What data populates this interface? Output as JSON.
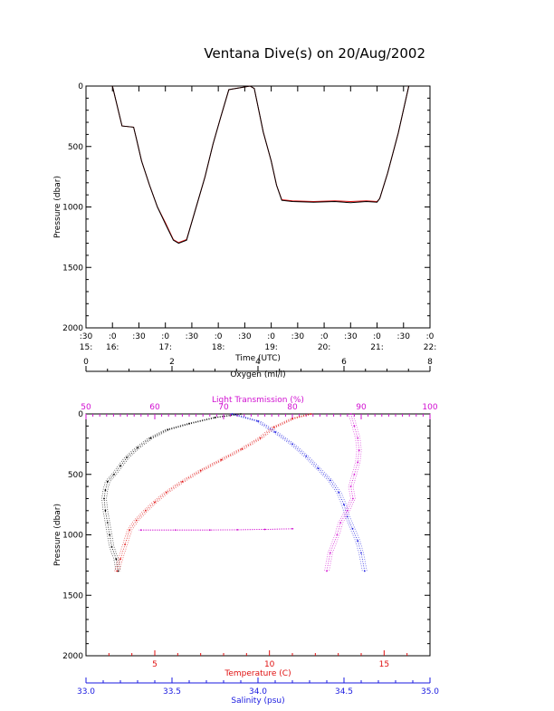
{
  "title": "Ventana Dive(s) on 20/Aug/2002",
  "colors": {
    "black": "#000000",
    "red": "#e01010",
    "blue": "#1a1ae0",
    "magenta": "#d10fd1"
  },
  "chart_data": [
    {
      "type": "line",
      "title": "Ventana Dive(s) on 20/Aug/2002",
      "xlabel": "Time (UTC)",
      "ylabel": "Pressure (dbar)",
      "xlim": [
        15.5,
        22.0
      ],
      "ylim": [
        2000,
        0
      ],
      "x_tick_labels": [
        {
          "x": 15.5,
          "top": ":30",
          "bottom": "15:"
        },
        {
          "x": 16.0,
          "top": ":0",
          "bottom": "16:"
        },
        {
          "x": 16.5,
          "top": ":30",
          "bottom": ""
        },
        {
          "x": 17.0,
          "top": ":0",
          "bottom": "17:"
        },
        {
          "x": 17.5,
          "top": ":30",
          "bottom": ""
        },
        {
          "x": 18.0,
          "top": ":0",
          "bottom": "18:"
        },
        {
          "x": 18.5,
          "top": ":30",
          "bottom": ""
        },
        {
          "x": 19.0,
          "top": ":0",
          "bottom": "19:"
        },
        {
          "x": 19.5,
          "top": ":30",
          "bottom": ""
        },
        {
          "x": 20.0,
          "top": ":0",
          "bottom": "20:"
        },
        {
          "x": 20.5,
          "top": ":30",
          "bottom": ""
        },
        {
          "x": 21.0,
          "top": ":0",
          "bottom": "21:"
        },
        {
          "x": 21.5,
          "top": ":30",
          "bottom": ""
        },
        {
          "x": 22.0,
          "top": ":0",
          "bottom": "22:"
        }
      ],
      "y_ticks": [
        0,
        500,
        1000,
        1500,
        2000
      ],
      "series": [
        {
          "color": "red",
          "x": [
            16.0,
            16.18,
            16.4,
            16.45,
            16.55,
            16.7,
            16.85,
            17.0,
            17.15,
            17.25,
            17.4,
            17.55,
            17.75,
            17.9,
            18.05,
            18.2,
            18.6,
            18.68,
            18.85,
            19.0,
            19.1,
            19.2,
            19.4,
            19.8,
            20.2,
            20.5,
            20.8,
            21.0,
            21.05,
            21.2,
            21.4,
            21.6
          ],
          "y": [
            0,
            330,
            340,
            430,
            620,
            820,
            1000,
            1130,
            1270,
            1295,
            1270,
            1050,
            750,
            480,
            250,
            30,
            0,
            20,
            380,
            620,
            820,
            940,
            950,
            955,
            950,
            955,
            950,
            955,
            930,
            720,
            390,
            0
          ]
        },
        {
          "color": "black",
          "x": [
            16.0,
            16.18,
            16.4,
            16.45,
            16.55,
            16.7,
            16.85,
            17.0,
            17.15,
            17.25,
            17.4,
            17.55,
            17.75,
            17.9,
            18.05,
            18.2,
            18.6,
            18.68,
            18.85,
            19.0,
            19.1,
            19.2,
            19.4,
            19.8,
            20.2,
            20.5,
            20.8,
            21.0,
            21.05,
            21.2,
            21.4,
            21.6
          ],
          "y": [
            0,
            330,
            340,
            430,
            620,
            820,
            1000,
            1140,
            1275,
            1300,
            1275,
            1050,
            750,
            480,
            250,
            30,
            0,
            20,
            380,
            620,
            820,
            945,
            955,
            960,
            955,
            965,
            955,
            960,
            930,
            720,
            390,
            0
          ]
        }
      ]
    },
    {
      "type": "scatter",
      "ylabel": "Pressure (dbar)",
      "ylim": [
        2000,
        0
      ],
      "y_ticks": [
        0,
        500,
        1000,
        1500,
        2000
      ],
      "axes": {
        "oxygen": {
          "label": "Oxygen (ml/l)",
          "range": [
            0,
            8
          ],
          "ticks": [
            0,
            2,
            4,
            6,
            8
          ],
          "color": "black",
          "position": "top"
        },
        "light": {
          "label": "Light Transmission (%)",
          "range": [
            50,
            100
          ],
          "ticks": [
            50,
            60,
            70,
            80,
            90,
            100
          ],
          "color": "magenta",
          "position": "top"
        },
        "temperature": {
          "label": "Temperature (C)",
          "range": [
            2,
            17
          ],
          "ticks": [
            5,
            10,
            15
          ],
          "color": "red",
          "position": "bottom"
        },
        "salinity": {
          "label": "Salinity (psu)",
          "range": [
            33.0,
            35.0
          ],
          "ticks": [
            "33.0",
            "33.5",
            "34.0",
            "34.5",
            "35.0"
          ],
          "color": "blue",
          "position": "bottom"
        }
      },
      "series": [
        {
          "color": "black",
          "axis": "oxygen",
          "x": [
            3.6,
            3.0,
            2.4,
            1.9,
            1.5,
            1.2,
            0.95,
            0.8,
            0.65,
            0.5,
            0.45,
            0.42,
            0.45,
            0.5,
            0.55,
            0.6,
            0.7,
            0.75
          ],
          "y": [
            0,
            30,
            80,
            130,
            200,
            280,
            360,
            430,
            500,
            560,
            630,
            700,
            800,
            900,
            1000,
            1100,
            1200,
            1300
          ]
        },
        {
          "color": "red",
          "axis": "temperature",
          "x": [
            11.8,
            11.0,
            10.2,
            9.6,
            8.8,
            7.9,
            7.0,
            6.2,
            5.5,
            5.0,
            4.6,
            4.2,
            3.9,
            3.7,
            3.5,
            3.35
          ],
          "y": [
            0,
            40,
            110,
            200,
            290,
            380,
            470,
            560,
            650,
            730,
            800,
            880,
            960,
            1080,
            1200,
            1300
          ]
        },
        {
          "color": "blue",
          "axis": "salinity",
          "x": [
            33.85,
            34.0,
            34.1,
            34.2,
            34.28,
            34.35,
            34.42,
            34.47,
            34.5,
            34.52,
            34.55,
            34.58,
            34.6,
            34.62
          ],
          "y": [
            0,
            60,
            150,
            250,
            350,
            450,
            550,
            650,
            750,
            850,
            950,
            1050,
            1150,
            1300
          ]
        },
        {
          "color": "magenta",
          "axis": "light",
          "x": [
            88.5,
            89.0,
            89.5,
            89.7,
            89.5,
            89.0,
            88.5,
            88.8,
            88.0,
            87.0,
            86.5,
            85.5,
            85.0
          ],
          "y": [
            0,
            100,
            200,
            300,
            400,
            500,
            600,
            700,
            800,
            900,
            1000,
            1150,
            1300
          ]
        },
        {
          "color": "magenta",
          "axis": "light",
          "x": [
            58,
            63,
            68,
            72,
            76,
            80
          ],
          "y": [
            960,
            960,
            960,
            958,
            955,
            950
          ]
        }
      ]
    }
  ]
}
